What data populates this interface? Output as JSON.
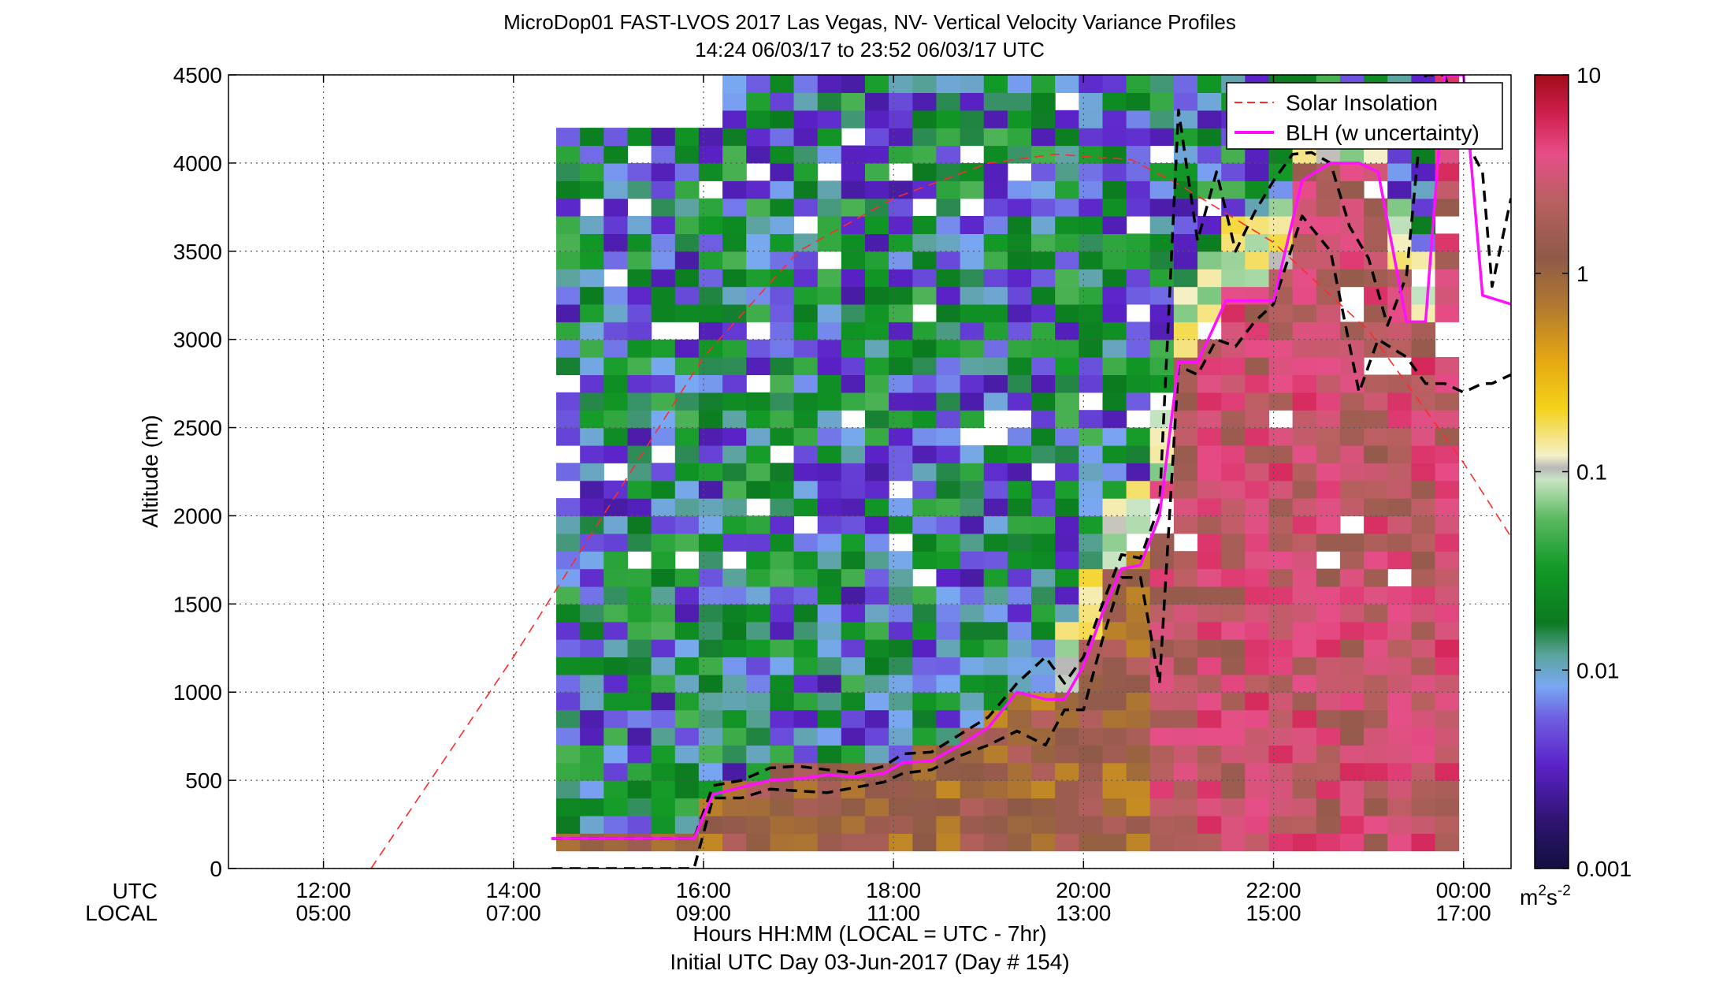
{
  "chart_data": {
    "type": "heatmap",
    "title": "MicroDop01 FAST-LVOS 2017 Las Vegas, NV- Vertical Velocity Variance Profiles",
    "subtitle": "14:24 06/03/17 to 23:52 06/03/17  UTC",
    "ylabel": "Altitude (m)",
    "xlabel": "Hours HH:MM  (LOCAL = UTC - 7hr)",
    "xlabel2": "Initial UTC Day 03-Jun-2017 (Day # 154)",
    "row_label_utc": "UTC",
    "row_label_local": "LOCAL",
    "x_unit": "hours UTC",
    "xlim": [
      11,
      24.5
    ],
    "ylim": [
      0,
      4500
    ],
    "grid": true,
    "legend_position": "top-right",
    "x_ticks": [
      {
        "x": 12,
        "utc": "12:00",
        "local": "05:00"
      },
      {
        "x": 14,
        "utc": "14:00",
        "local": "07:00"
      },
      {
        "x": 16,
        "utc": "16:00",
        "local": "09:00"
      },
      {
        "x": 18,
        "utc": "18:00",
        "local": "11:00"
      },
      {
        "x": 20,
        "utc": "20:00",
        "local": "13:00"
      },
      {
        "x": 22,
        "utc": "22:00",
        "local": "15:00"
      },
      {
        "x": 24,
        "utc": "00:00",
        "local": "17:00"
      }
    ],
    "y_ticks": [
      {
        "v": 0,
        "label": "0"
      },
      {
        "v": 500,
        "label": "500"
      },
      {
        "v": 1000,
        "label": "1000"
      },
      {
        "v": 1500,
        "label": "1500"
      },
      {
        "v": 2000,
        "label": "2000"
      },
      {
        "v": 2500,
        "label": "2500"
      },
      {
        "v": 3000,
        "label": "3000"
      },
      {
        "v": 3500,
        "label": "3500"
      },
      {
        "v": 4000,
        "label": "4000"
      },
      {
        "v": 4500,
        "label": "4500"
      }
    ],
    "colorbar": {
      "scale": "log",
      "range": [
        0.001,
        10
      ],
      "unit_base": "m",
      "unit_exp1": "2",
      "unit_mid": "s",
      "unit_exp2": "-2",
      "ticks": [
        {
          "v": 10,
          "label": "10"
        },
        {
          "v": 1,
          "label": "1"
        },
        {
          "v": 0.1,
          "label": "0.1"
        },
        {
          "v": 0.01,
          "label": "0.01"
        },
        {
          "v": 0.001,
          "label": "0.001"
        }
      ],
      "colors": [
        [
          0.0,
          "#12103f"
        ],
        [
          0.06,
          "#2e1470"
        ],
        [
          0.13,
          "#5b22c8"
        ],
        [
          0.19,
          "#6f5fe2"
        ],
        [
          0.23,
          "#79a8f2"
        ],
        [
          0.27,
          "#5aa39b"
        ],
        [
          0.31,
          "#0b7a20"
        ],
        [
          0.38,
          "#129a26"
        ],
        [
          0.44,
          "#5ab860"
        ],
        [
          0.49,
          "#c8e5c4"
        ],
        [
          0.505,
          "#b8b8b8"
        ],
        [
          0.52,
          "#f5f0c8"
        ],
        [
          0.58,
          "#f4d21a"
        ],
        [
          0.64,
          "#e5a812"
        ],
        [
          0.71,
          "#b07830"
        ],
        [
          0.77,
          "#8e5a48"
        ],
        [
          0.84,
          "#b86060"
        ],
        [
          0.9,
          "#e64e88"
        ],
        [
          0.95,
          "#d02050"
        ],
        [
          1.0,
          "#a00c1a"
        ]
      ]
    },
    "series": [
      {
        "name": "Solar Insolation",
        "style": "dashed",
        "color": "#ff2a2a",
        "x": [
          12.5,
          14.0,
          15.0,
          16.0,
          17.0,
          18.0,
          19.0,
          19.7,
          20.5,
          21.0,
          22.0,
          23.0,
          24.0,
          24.5
        ],
        "y": [
          0,
          1200,
          2050,
          2900,
          3500,
          3800,
          4000,
          4050,
          4020,
          3880,
          3550,
          3050,
          2300,
          1880
        ]
      },
      {
        "name": "BLH (w uncertainty)",
        "style": "solid",
        "color": "#ff10ff",
        "x": [
          14.4,
          15.0,
          15.55,
          15.9,
          16.1,
          16.4,
          16.7,
          17.0,
          17.3,
          17.6,
          17.9,
          18.1,
          18.4,
          18.7,
          19.0,
          19.3,
          19.6,
          19.8,
          20.0,
          20.2,
          20.4,
          20.6,
          20.8,
          21.0,
          21.2,
          21.5,
          21.8,
          22.0,
          22.3,
          22.6,
          22.9,
          23.1,
          23.4,
          23.6,
          23.8,
          24.0,
          24.2,
          24.5
        ],
        "y": [
          170,
          170,
          170,
          170,
          420,
          460,
          500,
          510,
          530,
          520,
          540,
          600,
          610,
          700,
          800,
          1000,
          960,
          960,
          1150,
          1450,
          1700,
          1720,
          2000,
          2870,
          2870,
          3220,
          3220,
          3220,
          3900,
          4000,
          4000,
          3950,
          3100,
          3100,
          4500,
          4500,
          3250,
          3200
        ]
      },
      {
        "name": "BLH upper",
        "style": "dashed",
        "color": "#000000",
        "x": [
          14.4,
          15.0,
          15.55,
          15.9,
          16.1,
          16.4,
          16.7,
          17.0,
          17.3,
          17.6,
          17.9,
          18.1,
          18.4,
          18.7,
          19.0,
          19.3,
          19.6,
          19.8,
          20.0,
          20.2,
          20.4,
          20.6,
          20.8,
          21.0,
          21.2,
          21.4,
          21.6,
          21.8,
          22.0,
          22.2,
          22.4,
          22.6,
          22.8,
          23.0,
          23.2,
          23.4,
          23.6,
          23.8,
          24.0,
          24.2,
          24.3,
          24.5
        ],
        "y": [
          170,
          170,
          170,
          170,
          470,
          500,
          570,
          580,
          560,
          540,
          580,
          650,
          660,
          760,
          860,
          1050,
          1200,
          1050,
          1200,
          1500,
          1780,
          1760,
          2060,
          4300,
          3560,
          3950,
          3500,
          3720,
          3900,
          4050,
          4060,
          4000,
          3640,
          3460,
          3080,
          3360,
          4500,
          4500,
          4150,
          3950,
          3300,
          3800
        ]
      },
      {
        "name": "BLH lower",
        "style": "dashed",
        "color": "#000000",
        "x": [
          14.4,
          15.0,
          15.5,
          15.9,
          16.1,
          16.4,
          16.7,
          17.0,
          17.3,
          17.6,
          17.9,
          18.1,
          18.4,
          18.7,
          19.0,
          19.3,
          19.6,
          19.8,
          20.0,
          20.2,
          20.4,
          20.6,
          20.8,
          21.0,
          21.2,
          21.4,
          21.6,
          21.8,
          22.0,
          22.3,
          22.6,
          22.9,
          23.1,
          23.4,
          23.6,
          23.8,
          24.0,
          24.2,
          24.3,
          24.5
        ],
        "y": [
          0,
          0,
          0,
          0,
          400,
          400,
          450,
          440,
          430,
          460,
          490,
          540,
          560,
          640,
          700,
          780,
          700,
          900,
          900,
          1300,
          1650,
          1650,
          1050,
          2850,
          2800,
          3000,
          2960,
          3100,
          3200,
          3700,
          3500,
          2700,
          3000,
          2900,
          2750,
          2750,
          2700,
          2750,
          2750,
          2800
        ]
      }
    ]
  }
}
